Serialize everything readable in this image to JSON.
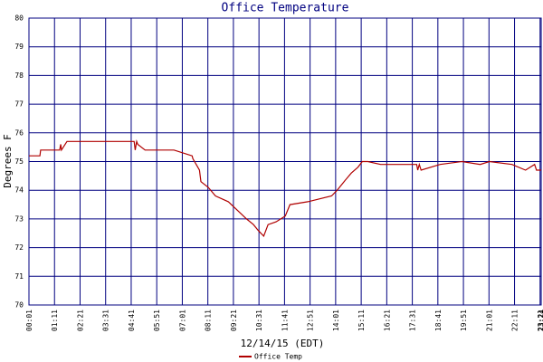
{
  "chart_data": {
    "type": "line",
    "title": "Office Temperature",
    "y_label": "Degrees F",
    "x_label": "12/14/15 (EDT)",
    "xlim": [
      1,
      1404
    ],
    "xticks": [
      {
        "value": 1,
        "label": "00:01"
      },
      {
        "value": 71,
        "label": "01:11"
      },
      {
        "value": 141,
        "label": "02:21"
      },
      {
        "value": 211,
        "label": "03:31"
      },
      {
        "value": 281,
        "label": "04:41"
      },
      {
        "value": 351,
        "label": "05:51"
      },
      {
        "value": 421,
        "label": "07:01"
      },
      {
        "value": 491,
        "label": "08:11"
      },
      {
        "value": 561,
        "label": "09:21"
      },
      {
        "value": 631,
        "label": "10:31"
      },
      {
        "value": 701,
        "label": "11:41"
      },
      {
        "value": 771,
        "label": "12:51"
      },
      {
        "value": 841,
        "label": "14:01"
      },
      {
        "value": 911,
        "label": "15:11"
      },
      {
        "value": 981,
        "label": "16:21"
      },
      {
        "value": 1051,
        "label": "17:31"
      },
      {
        "value": 1121,
        "label": "18:41"
      },
      {
        "value": 1191,
        "label": "19:51"
      },
      {
        "value": 1261,
        "label": "21:01"
      },
      {
        "value": 1331,
        "label": "22:11"
      },
      {
        "value": 1401,
        "label": "23:21"
      },
      {
        "value": 1404,
        "label": "23:24"
      }
    ],
    "ylim": [
      70,
      80
    ],
    "yticks": [
      70,
      71,
      72,
      73,
      74,
      75,
      76,
      77,
      78,
      79,
      80
    ],
    "grid": true,
    "legend": "bottom",
    "x": [
      1,
      31,
      33,
      85,
      88,
      90,
      105,
      289,
      292,
      296,
      299,
      319,
      398,
      448,
      450,
      468,
      472,
      492,
      512,
      547,
      572,
      597,
      616,
      629,
      644,
      656,
      678,
      703,
      716,
      765,
      830,
      845,
      864,
      884,
      902,
      914,
      929,
      964,
      1063,
      1066,
      1070,
      1075,
      1127,
      1187,
      1237,
      1262,
      1324,
      1361,
      1386,
      1391,
      1404
    ],
    "series": [
      {
        "name": "Office Temp",
        "color": "#b00000",
        "values": [
          75.2,
          75.2,
          75.4,
          75.4,
          75.6,
          75.4,
          75.7,
          75.7,
          75.4,
          75.7,
          75.6,
          75.4,
          75.4,
          75.2,
          75.1,
          74.7,
          74.3,
          74.1,
          73.8,
          73.6,
          73.3,
          73.0,
          72.8,
          72.6,
          72.4,
          72.8,
          72.9,
          73.1,
          73.5,
          73.6,
          73.8,
          74.0,
          74.3,
          74.6,
          74.8,
          75.0,
          75.0,
          74.9,
          74.9,
          74.7,
          74.9,
          74.7,
          74.9,
          75.0,
          74.9,
          75.0,
          74.9,
          74.7,
          74.9,
          74.7,
          74.7
        ]
      }
    ]
  }
}
